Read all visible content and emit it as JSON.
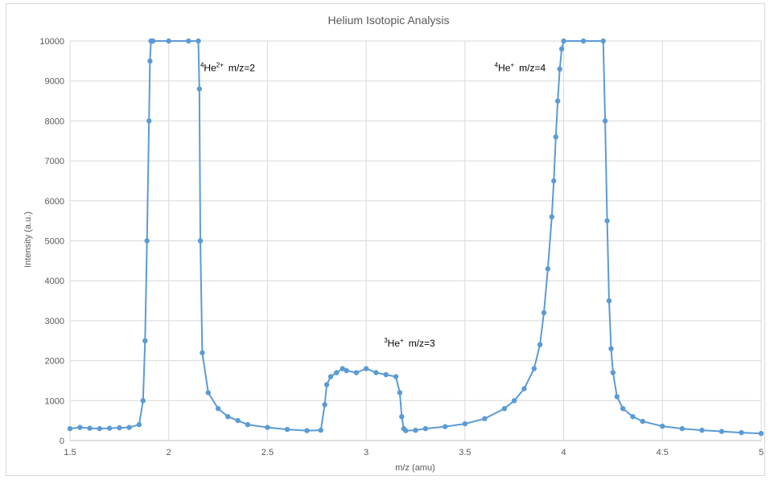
{
  "chart_data": {
    "type": "scatter",
    "title": "Helium Isotopic Analysis",
    "xlabel": "m/z (amu)",
    "ylabel": "Intensity (a.u.)",
    "xlim": [
      1.5,
      5
    ],
    "ylim": [
      0,
      10000
    ],
    "x_ticks": [
      "1.5",
      "2",
      "2.5",
      "3",
      "3.5",
      "4",
      "4.5",
      "5"
    ],
    "y_ticks": [
      "0",
      "1000",
      "2000",
      "3000",
      "4000",
      "5000",
      "6000",
      "7000",
      "8000",
      "9000",
      "10000"
    ],
    "grid": true,
    "legend": "none",
    "series_color": "#5b9bd5",
    "marker": "circle-with-line",
    "series": [
      {
        "x": [
          1.5,
          1.55,
          1.6,
          1.65,
          1.7,
          1.75,
          1.8,
          1.85,
          1.87,
          1.88,
          1.89,
          1.9,
          1.905,
          1.91,
          1.915,
          1.92,
          2.0,
          2.1,
          2.15,
          2.155,
          2.16,
          2.17,
          2.2,
          2.25,
          2.3,
          2.35,
          2.4,
          2.5,
          2.6,
          2.7,
          2.77,
          2.79,
          2.8,
          2.82,
          2.85,
          2.88,
          2.9,
          2.95,
          3.0,
          3.05,
          3.1,
          3.15,
          3.17,
          3.18,
          3.19,
          3.2,
          3.25,
          3.3,
          3.4,
          3.5,
          3.6,
          3.7,
          3.75,
          3.8,
          3.85,
          3.88,
          3.9,
          3.92,
          3.94,
          3.95,
          3.96,
          3.97,
          3.98,
          3.99,
          4.0,
          4.1,
          4.2,
          4.21,
          4.22,
          4.23,
          4.24,
          4.25,
          4.27,
          4.3,
          4.35,
          4.4,
          4.5,
          4.6,
          4.7,
          4.8,
          4.9,
          5.0
        ],
        "y": [
          300,
          330,
          310,
          300,
          310,
          320,
          330,
          400,
          1000,
          2500,
          5000,
          8000,
          9500,
          10000,
          10000,
          10000,
          10000,
          10000,
          10000,
          8800,
          5000,
          2200,
          1200,
          800,
          600,
          500,
          400,
          330,
          280,
          250,
          260,
          900,
          1400,
          1600,
          1700,
          1800,
          1750,
          1700,
          1800,
          1700,
          1650,
          1600,
          1200,
          600,
          300,
          250,
          260,
          300,
          350,
          420,
          550,
          800,
          1000,
          1300,
          1800,
          2400,
          3200,
          4300,
          5600,
          6500,
          7600,
          8500,
          9300,
          9800,
          10000,
          10000,
          10000,
          8000,
          5500,
          3500,
          2300,
          1700,
          1100,
          800,
          600,
          480,
          360,
          300,
          260,
          230,
          200,
          180
        ]
      }
    ],
    "annotations": [
      {
        "text": "m/z=2",
        "superscript_prefix": "4",
        "species": "He",
        "charge": "2+",
        "x": 2.16,
        "y": 9250
      },
      {
        "text": "m/z=3",
        "superscript_prefix": "3",
        "species": "He",
        "charge": "+",
        "x": 3.09,
        "y": 2350
      },
      {
        "text": "m/z=4",
        "superscript_prefix": "4",
        "species": "He",
        "charge": "+",
        "x": 3.65,
        "y": 9250
      }
    ]
  }
}
